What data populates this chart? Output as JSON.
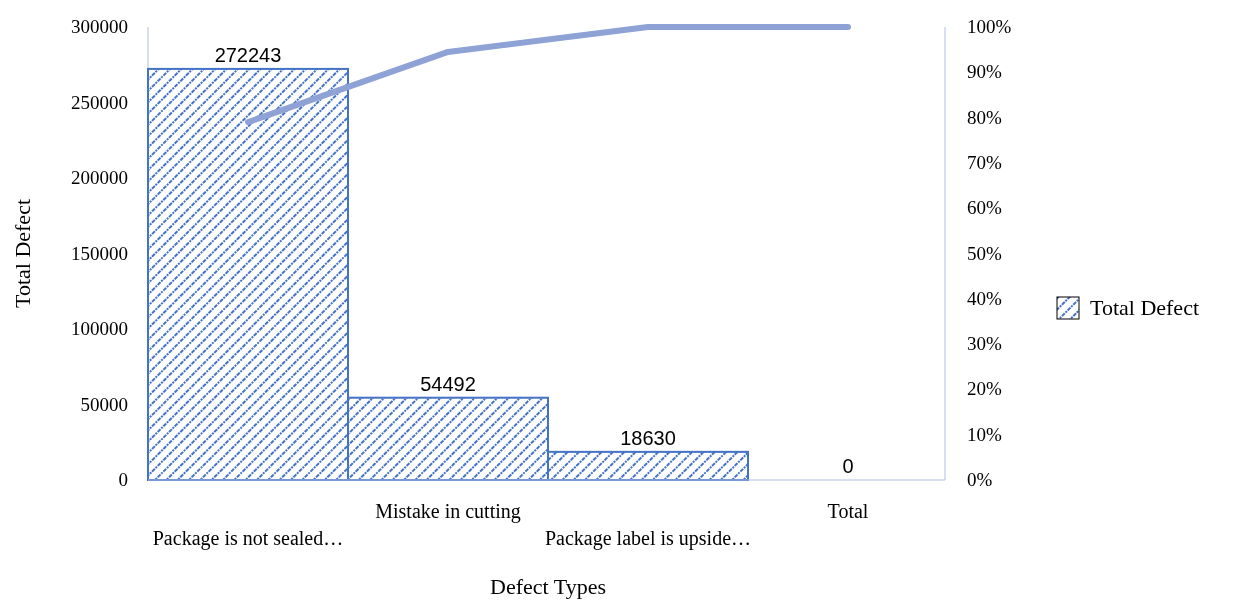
{
  "chart_data": {
    "type": "bar",
    "xlabel": "Defect Types",
    "ylabel": "Total Defect",
    "categories": [
      "Package is not sealed…",
      "Mistake in cutting",
      "Package label is upside…",
      "Total"
    ],
    "series": [
      {
        "name": "Total Defect",
        "color": "#4472c4",
        "values": [
          272243,
          54492,
          18630,
          0
        ],
        "value_labels": [
          "272243",
          "54492",
          "18630",
          "0"
        ]
      },
      {
        "type": "line",
        "axis": "y2",
        "color": "#8ea2d6",
        "values": [
          79,
          94.5,
          100,
          100
        ]
      }
    ],
    "ylim": [
      0,
      300000
    ],
    "yticks": [
      0,
      50000,
      100000,
      150000,
      200000,
      250000,
      300000
    ],
    "y2lim": [
      0,
      100
    ],
    "y2ticks": [
      {
        "value": 0,
        "label": "0%"
      },
      {
        "value": 10,
        "label": "10%"
      },
      {
        "value": 20,
        "label": "20%"
      },
      {
        "value": 30,
        "label": "30%"
      },
      {
        "value": 40,
        "label": "40%"
      },
      {
        "value": 50,
        "label": "50%"
      },
      {
        "value": 60,
        "label": "60%"
      },
      {
        "value": 70,
        "label": "70%"
      },
      {
        "value": 80,
        "label": "80%"
      },
      {
        "value": 90,
        "label": "90%"
      },
      {
        "value": 100,
        "label": "100%"
      }
    ],
    "legend": "right",
    "grid": false
  }
}
